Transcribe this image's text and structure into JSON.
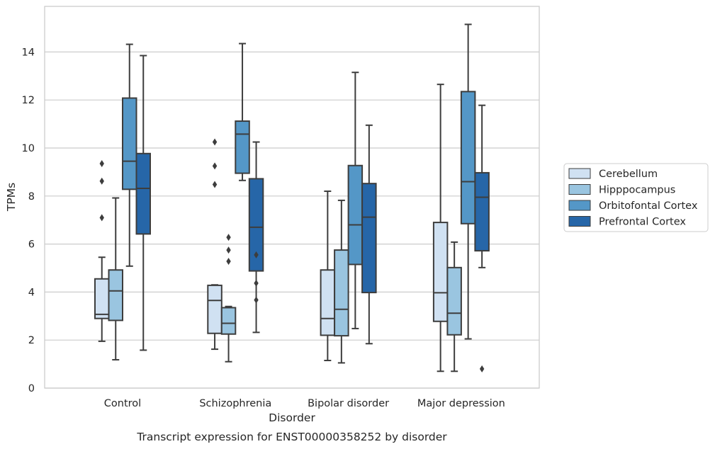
{
  "caption": "Transcript expression for ENST00000358252 by disorder",
  "chart_data": {
    "type": "box",
    "xlabel": "Disorder",
    "ylabel": "TPMs",
    "ylim": [
      0,
      15.9
    ],
    "yticks": [
      0,
      2,
      4,
      6,
      8,
      10,
      12,
      14
    ],
    "grid": "horizontal",
    "legend_position": "right",
    "categories": [
      "Control",
      "Schizophrenia",
      "Bipolar disorder",
      "Major depression"
    ],
    "series": [
      {
        "name": "Cerebellum",
        "color": "#d0e1f2",
        "boxes": [
          {
            "whislo": 1.95,
            "q1": 2.9,
            "med": 3.07,
            "q3": 4.55,
            "whishi": 5.45,
            "fliers": [
              7.1,
              8.62,
              9.35
            ]
          },
          {
            "whislo": 1.62,
            "q1": 2.28,
            "med": 3.65,
            "q3": 4.28,
            "whishi": 4.3,
            "fliers": [
              8.48,
              9.25,
              10.25
            ]
          },
          {
            "whislo": 1.15,
            "q1": 2.2,
            "med": 2.9,
            "q3": 4.92,
            "whishi": 8.2,
            "fliers": []
          },
          {
            "whislo": 0.7,
            "q1": 2.78,
            "med": 3.97,
            "q3": 6.9,
            "whishi": 12.65,
            "fliers": []
          }
        ]
      },
      {
        "name": "Hipppocampus",
        "color": "#9ac5e0",
        "boxes": [
          {
            "whislo": 1.18,
            "q1": 2.82,
            "med": 4.05,
            "q3": 4.92,
            "whishi": 7.92,
            "fliers": []
          },
          {
            "whislo": 1.1,
            "q1": 2.25,
            "med": 2.7,
            "q3": 3.35,
            "whishi": 3.4,
            "fliers": [
              5.28,
              5.75,
              6.28
            ]
          },
          {
            "whislo": 1.05,
            "q1": 2.18,
            "med": 3.28,
            "q3": 5.75,
            "whishi": 7.82,
            "fliers": []
          },
          {
            "whislo": 0.7,
            "q1": 2.22,
            "med": 3.12,
            "q3": 5.02,
            "whishi": 6.08,
            "fliers": []
          }
        ]
      },
      {
        "name": "Orbitofontal Cortex",
        "color": "#5497c7",
        "boxes": [
          {
            "whislo": 5.08,
            "q1": 8.28,
            "med": 9.45,
            "q3": 12.08,
            "whishi": 14.32,
            "fliers": []
          },
          {
            "whislo": 8.65,
            "q1": 8.95,
            "med": 10.58,
            "q3": 11.12,
            "whishi": 14.35,
            "fliers": []
          },
          {
            "whislo": 2.48,
            "q1": 5.15,
            "med": 6.8,
            "q3": 9.27,
            "whishi": 13.15,
            "fliers": []
          },
          {
            "whislo": 2.05,
            "q1": 6.85,
            "med": 8.6,
            "q3": 12.35,
            "whishi": 15.15,
            "fliers": []
          }
        ]
      },
      {
        "name": "Prefrontal Cortex",
        "color": "#2666a8",
        "boxes": [
          {
            "whislo": 1.58,
            "q1": 6.42,
            "med": 8.32,
            "q3": 9.77,
            "whishi": 13.85,
            "fliers": []
          },
          {
            "whislo": 2.32,
            "q1": 4.88,
            "med": 6.7,
            "q3": 8.72,
            "whishi": 10.25,
            "fliers": [
              3.67,
              4.37,
              5.55
            ]
          },
          {
            "whislo": 1.85,
            "q1": 3.98,
            "med": 7.12,
            "q3": 8.52,
            "whishi": 10.95,
            "fliers": []
          },
          {
            "whislo": 5.02,
            "q1": 5.72,
            "med": 7.95,
            "q3": 8.97,
            "whishi": 11.78,
            "fliers": [
              0.8
            ]
          }
        ]
      }
    ]
  }
}
